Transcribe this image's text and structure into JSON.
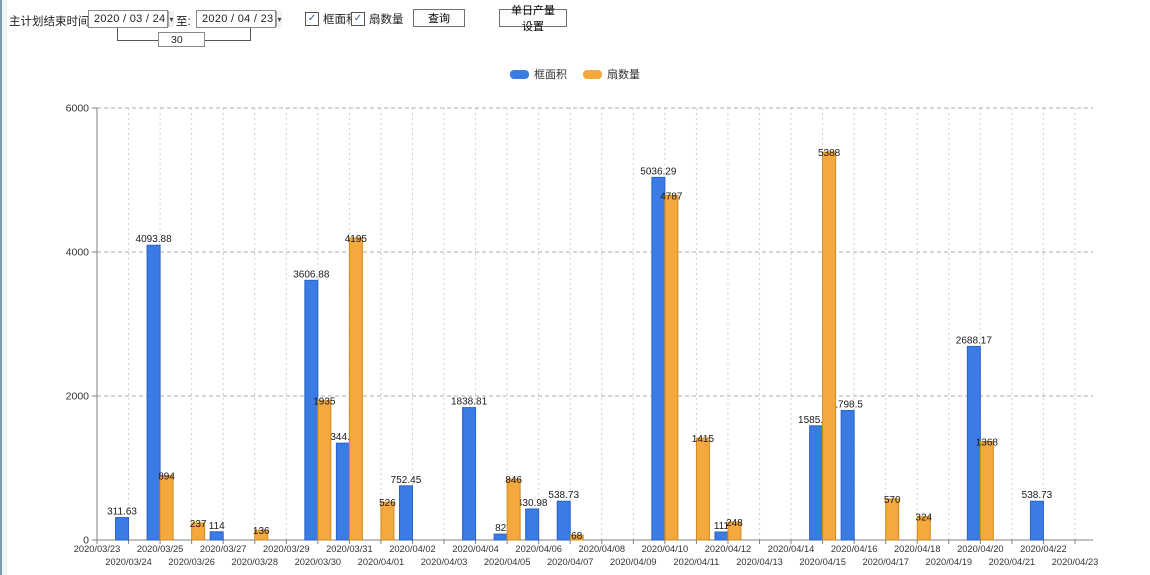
{
  "frame": {
    "left_strip_color": "#7b99a9"
  },
  "icons": {
    "dropdown_arrow": "▾",
    "check": "✓"
  },
  "toolbar": {
    "label": "主计划结束时间:",
    "date_from": "2020 / 03 / 24",
    "to_label": "至:",
    "date_to": "2020 / 04 / 23",
    "interval_value": "30",
    "checkbox_frame_label": "框面积",
    "checkbox_fan_label": "扇数量",
    "query_label": "查询",
    "daily_output_label": "单日产量设置"
  },
  "legend": {
    "items": [
      {
        "label": "框面积",
        "color": "#3b7ce4"
      },
      {
        "label": "扇数量",
        "color": "#f4a93f"
      }
    ]
  },
  "chart_data": {
    "type": "bar",
    "title": "",
    "xlabel": "",
    "ylabel": "",
    "ylim": [
      0,
      6000
    ],
    "ytick_step": 2000,
    "grid": true,
    "legend_position": "top",
    "categories": [
      "2020/03/23",
      "2020/03/24",
      "2020/03/25",
      "2020/03/26",
      "2020/03/27",
      "2020/03/28",
      "2020/03/29",
      "2020/03/30",
      "2020/03/31",
      "2020/04/01",
      "2020/04/02",
      "2020/04/03",
      "2020/04/04",
      "2020/04/05",
      "2020/04/06",
      "2020/04/07",
      "2020/04/08",
      "2020/04/09",
      "2020/04/10",
      "2020/04/11",
      "2020/04/12",
      "2020/04/13",
      "2020/04/14",
      "2020/04/15",
      "2020/04/16",
      "2020/04/17",
      "2020/04/18",
      "2020/04/19",
      "2020/04/20",
      "2020/04/21",
      "2020/04/22",
      "2020/04/23"
    ],
    "series": [
      {
        "name": "框面积",
        "color": "#3b7ce4",
        "border": "#2a62c9",
        "values": [
          null,
          311.63,
          4093.88,
          null,
          114,
          null,
          null,
          3606.88,
          1344.95,
          null,
          752.45,
          null,
          1838.81,
          82,
          430.98,
          538.73,
          null,
          null,
          5036.29,
          null,
          111,
          null,
          null,
          1585.96,
          1798.5,
          null,
          null,
          null,
          2688.17,
          null,
          538.73,
          null
        ]
      },
      {
        "name": "扇数量",
        "color": "#f4a93f",
        "border": "#cf8b1f",
        "values": [
          null,
          null,
          894,
          237,
          null,
          136,
          null,
          1935,
          4195,
          526,
          null,
          null,
          null,
          846,
          null,
          68,
          null,
          null,
          4787,
          1415,
          248,
          null,
          null,
          5388,
          null,
          570,
          324,
          null,
          1368,
          null,
          null,
          null
        ]
      }
    ]
  }
}
